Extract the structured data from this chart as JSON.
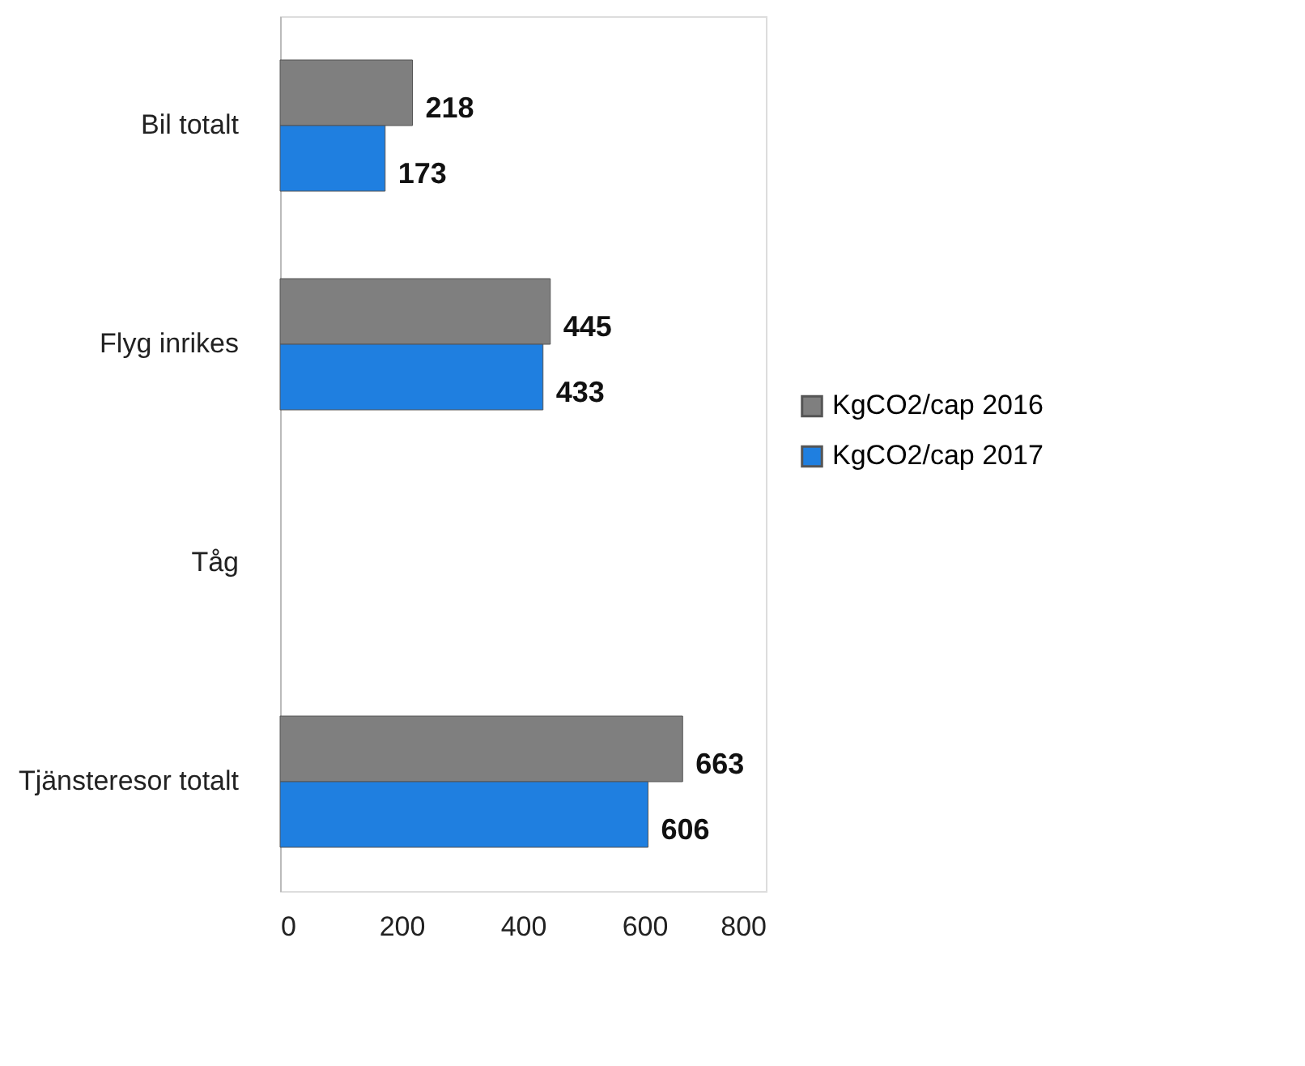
{
  "chart_data": {
    "type": "bar",
    "orientation": "horizontal",
    "categories": [
      "Bil totalt",
      "Flyg inrikes",
      "Tåg",
      "Tjänsteresor totalt"
    ],
    "series": [
      {
        "name": "KgCO2/cap 2016",
        "color": "#7f7f7f",
        "values": [
          218,
          445,
          null,
          663
        ]
      },
      {
        "name": "KgCO2/cap 2017",
        "color": "#1f7fe0",
        "values": [
          173,
          433,
          null,
          606
        ]
      }
    ],
    "xlim": [
      0,
      800
    ],
    "xticks": [
      0,
      200,
      400,
      600,
      800
    ],
    "grid": false,
    "legend": "right",
    "data_labels": true
  }
}
